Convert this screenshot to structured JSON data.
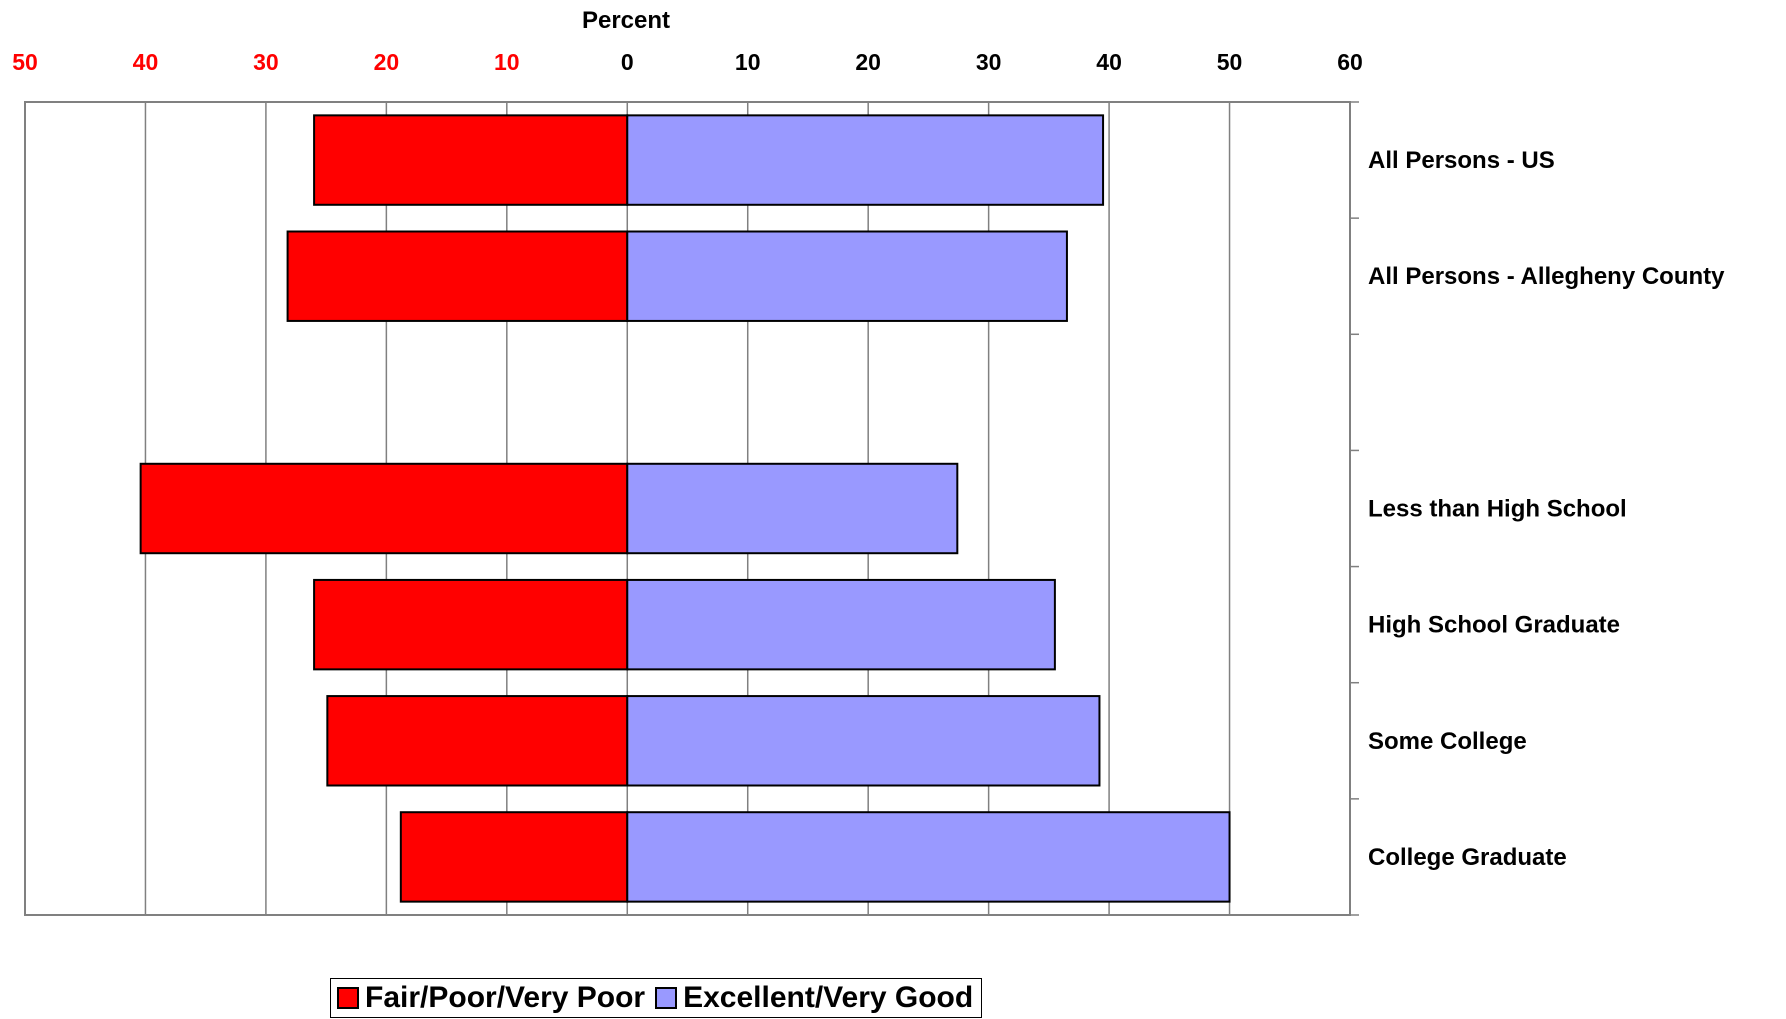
{
  "chart_data": {
    "type": "bar",
    "orientation": "horizontal-diverging",
    "xlabel": "Percent",
    "xlim": [
      -50,
      60
    ],
    "tick_values": [
      -50,
      -40,
      -30,
      -20,
      -10,
      0,
      10,
      20,
      30,
      40,
      50,
      60
    ],
    "tick_labels": [
      "50",
      "40",
      "30",
      "20",
      "10",
      "0",
      "10",
      "20",
      "30",
      "40",
      "50",
      "60"
    ],
    "negative_tick_color": "#ff0000",
    "positive_tick_color": "#000000",
    "grid": true,
    "legend_position": "bottom",
    "category_slots": [
      "All Persons - US",
      "All Persons - Allegheny County",
      "",
      "Less than High School",
      "High School Graduate",
      "Some College",
      "College Graduate"
    ],
    "series": [
      {
        "name": "Fair/Poor/Very Poor",
        "color": "#ff0000",
        "direction": "left",
        "values": [
          26,
          28.2,
          null,
          40.4,
          26,
          24.9,
          18.8
        ]
      },
      {
        "name": "Excellent/Very Good",
        "color": "#9999ff",
        "direction": "right",
        "values": [
          39.5,
          36.5,
          null,
          27.4,
          35.5,
          39.2,
          50
        ]
      }
    ]
  }
}
